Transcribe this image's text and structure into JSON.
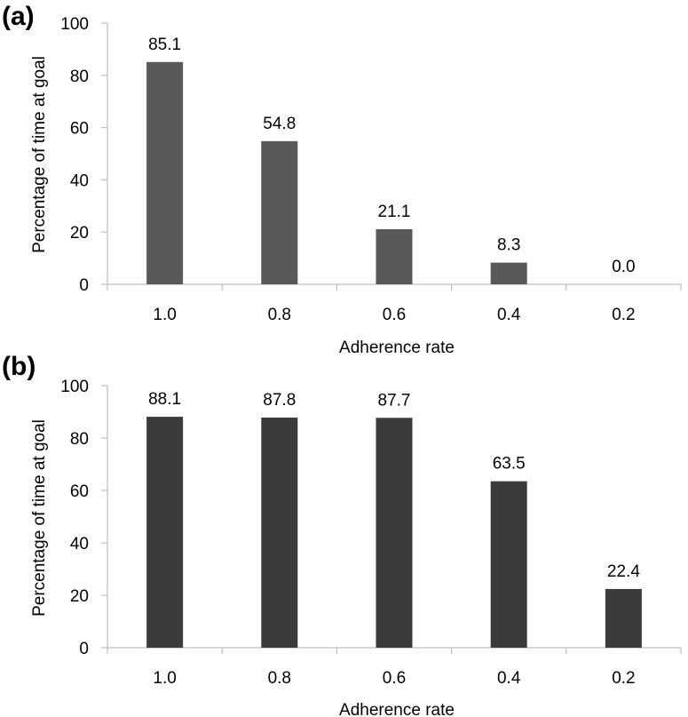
{
  "chart_data": [
    {
      "type": "bar",
      "panel_label": "(a)",
      "categories": [
        "1.0",
        "0.8",
        "0.6",
        "0.4",
        "0.2"
      ],
      "values": [
        85.1,
        54.8,
        21.1,
        8.3,
        0.0
      ],
      "value_labels": [
        "85.1",
        "54.8",
        "21.1",
        "8.3",
        "0.0"
      ],
      "xlabel": "Adherence rate",
      "ylabel": "Percentage of time at goal",
      "ylim": [
        0,
        100
      ],
      "yticks": [
        "0",
        "20",
        "40",
        "60",
        "80",
        "100"
      ],
      "grid": false,
      "bar_color": "#595959"
    },
    {
      "type": "bar",
      "panel_label": "(b)",
      "categories": [
        "1.0",
        "0.8",
        "0.6",
        "0.4",
        "0.2"
      ],
      "values": [
        88.1,
        87.8,
        87.7,
        63.5,
        22.4
      ],
      "value_labels": [
        "88.1",
        "87.8",
        "87.7",
        "63.5",
        "22.4"
      ],
      "xlabel": "Adherence rate",
      "ylabel": "Percentage of time at goal",
      "ylim": [
        0,
        100
      ],
      "yticks": [
        "0",
        "20",
        "40",
        "60",
        "80",
        "100"
      ],
      "grid": false,
      "bar_color": "#3b3b3b"
    }
  ]
}
